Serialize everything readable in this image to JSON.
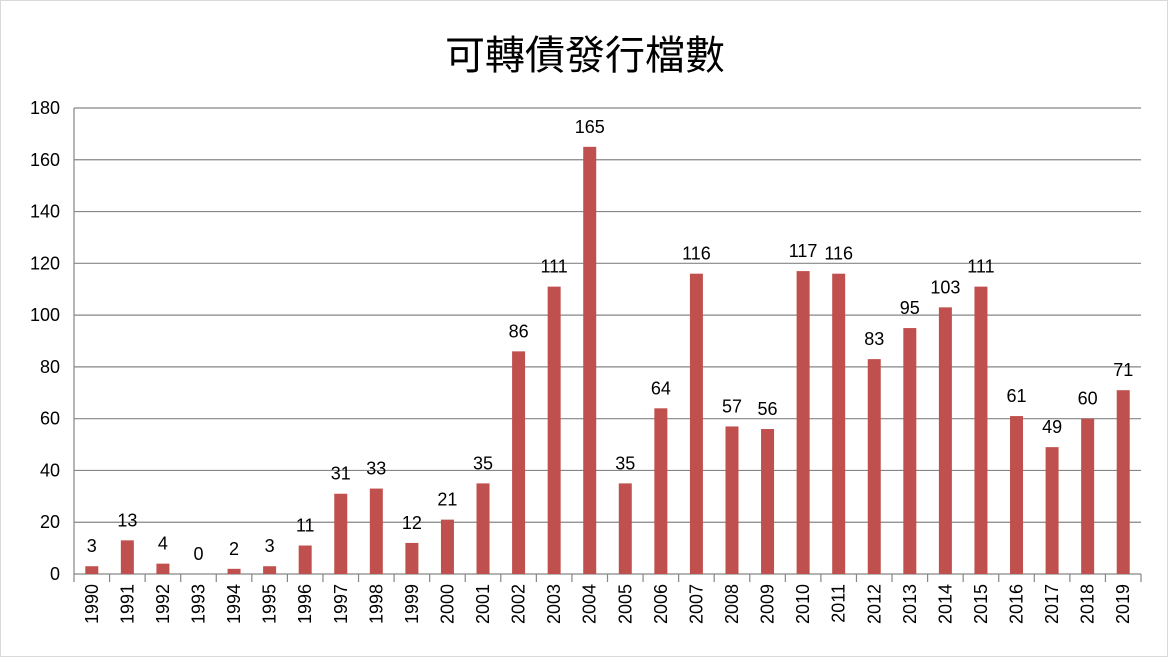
{
  "chart_data": {
    "type": "bar",
    "title": "可轉債發行檔數",
    "xlabel": "",
    "ylabel": "",
    "categories": [
      "1990",
      "1991",
      "1992",
      "1993",
      "1994",
      "1995",
      "1996",
      "1997",
      "1998",
      "1999",
      "2000",
      "2001",
      "2002",
      "2003",
      "2004",
      "2005",
      "2006",
      "2007",
      "2008",
      "2009",
      "2010",
      "2011",
      "2012",
      "2013",
      "2014",
      "2015",
      "2016",
      "2017",
      "2018",
      "2019"
    ],
    "values": [
      3,
      13,
      4,
      0,
      2,
      3,
      11,
      31,
      33,
      12,
      21,
      35,
      86,
      111,
      165,
      35,
      64,
      116,
      57,
      56,
      117,
      116,
      83,
      95,
      103,
      111,
      61,
      49,
      60,
      71
    ],
    "ylim": [
      0,
      180
    ],
    "yticks": [
      0,
      20,
      40,
      60,
      80,
      100,
      120,
      140,
      160,
      180
    ],
    "grid": true,
    "legend": "none",
    "data_labels": true,
    "bar_color": "#c0504d"
  }
}
